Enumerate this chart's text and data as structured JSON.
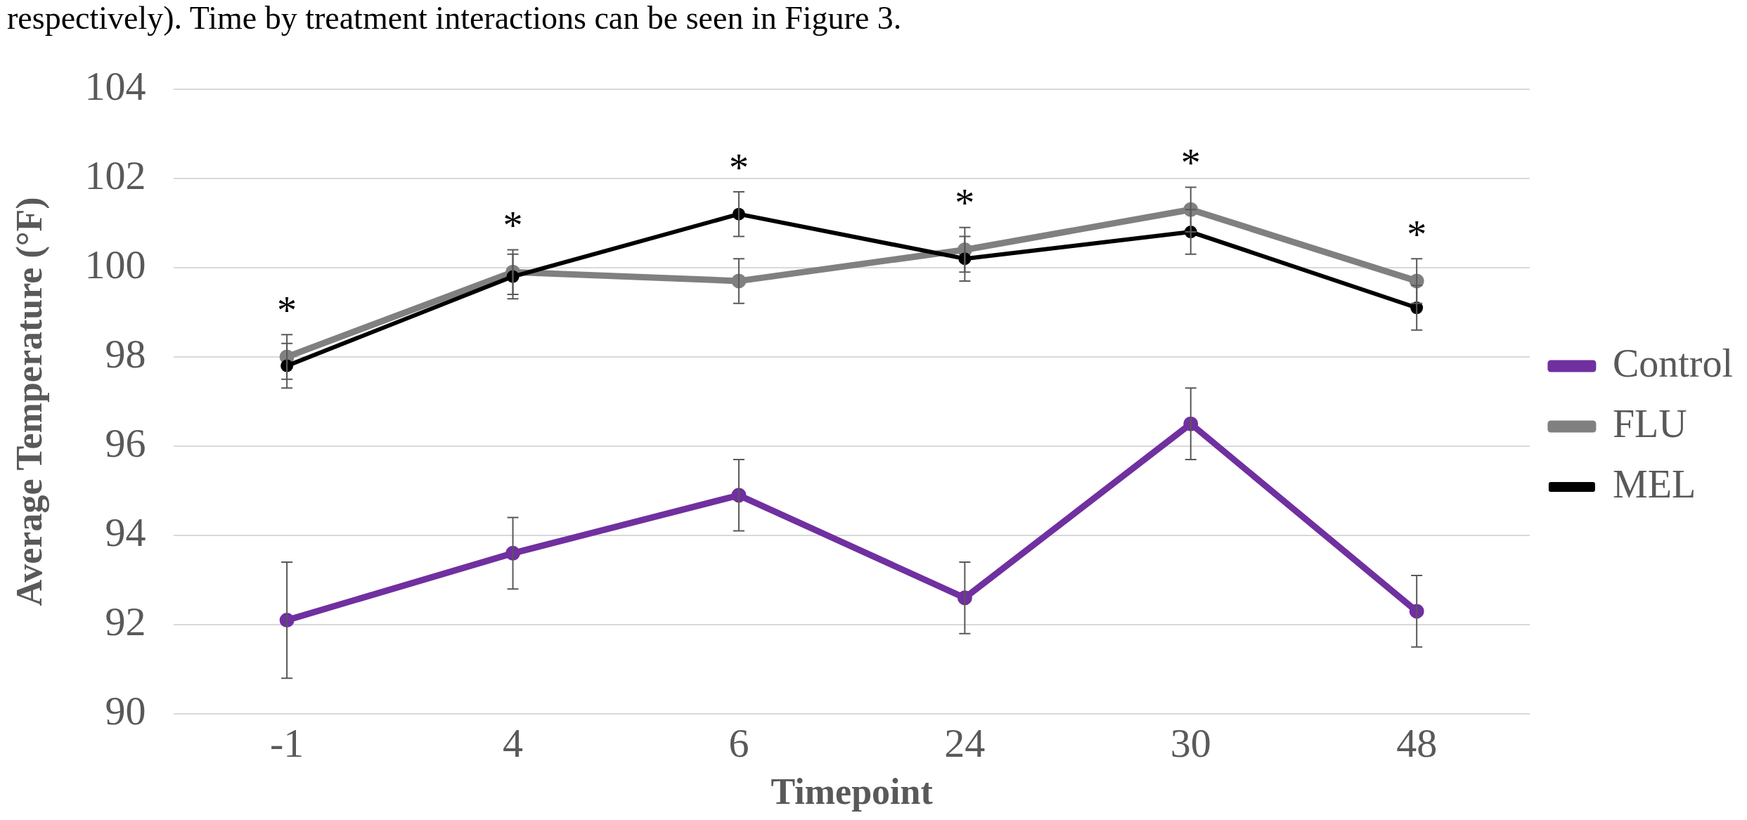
{
  "chart_data": {
    "type": "line",
    "xlabel": "Timepoint",
    "ylabel": "Average Temperature (°F)",
    "categories": [
      "-1",
      "4",
      "6",
      "24",
      "30",
      "48"
    ],
    "series": [
      {
        "name": "Control",
        "color": "#7030a0",
        "values": [
          92.1,
          93.6,
          94.9,
          92.6,
          96.5,
          92.3
        ],
        "errors": [
          1.3,
          0.8,
          0.8,
          0.8,
          0.8,
          0.8
        ]
      },
      {
        "name": "FLU",
        "color": "#808080",
        "values": [
          98.0,
          99.9,
          99.7,
          100.4,
          101.3,
          99.7
        ],
        "errors": [
          0.5,
          0.5,
          0.5,
          0.5,
          0.5,
          0.5
        ]
      },
      {
        "name": "MEL",
        "color": "#000000",
        "values": [
          97.8,
          99.8,
          101.2,
          100.2,
          100.8,
          99.1
        ],
        "errors": [
          0.5,
          0.5,
          0.5,
          0.5,
          0.5,
          0.5
        ]
      }
    ],
    "ylim": [
      90,
      104
    ],
    "yticks": [
      90,
      92,
      94,
      96,
      98,
      100,
      102,
      104
    ],
    "grid": "y",
    "legend": "right",
    "marker": "circle",
    "annotations": [
      "respectively). Time by treatment interactions can be seen in Figure 3.",
      "*",
      "*",
      "*",
      "*",
      "*",
      "*"
    ]
  }
}
